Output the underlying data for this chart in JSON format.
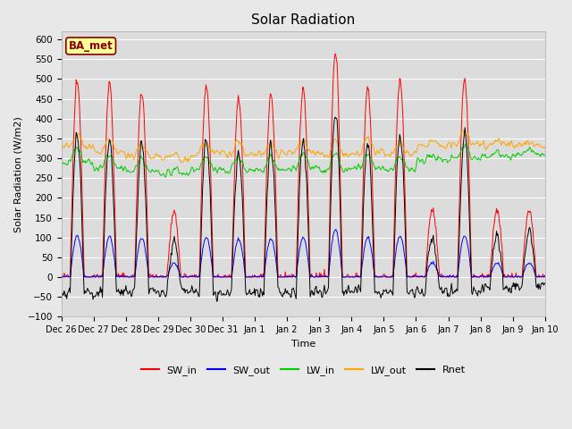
{
  "title": "Solar Radiation",
  "xlabel": "Time",
  "ylabel": "Solar Radiation (W/m2)",
  "ylim": [
    -100,
    620
  ],
  "yticks": [
    -100,
    -50,
    0,
    50,
    100,
    150,
    200,
    250,
    300,
    350,
    400,
    450,
    500,
    550,
    600
  ],
  "colors": {
    "SW_in": "#ff0000",
    "SW_out": "#0000ff",
    "LW_in": "#00cc00",
    "LW_out": "#ffa500",
    "Rnet": "#000000"
  },
  "annotation_text": "BA_met",
  "annotation_color": "#8B0000",
  "annotation_bg": "#ffff99",
  "plot_bg_color": "#dcdcdc",
  "fig_bg_color": "#e8e8e8",
  "n_days": 15,
  "n_per_day": 48,
  "tick_labels": [
    "Dec 26",
    "Dec 27",
    "Dec 28",
    "Dec 29",
    "Dec 30",
    "Dec 31",
    "Jan 1",
    "Jan 2",
    "Jan 3",
    "Jan 4",
    "Jan 5",
    "Jan 6",
    "Jan 7",
    "Jan 8",
    "Jan 9",
    "Jan 10"
  ],
  "peak_heights_sw_in": [
    495,
    490,
    470,
    160,
    480,
    450,
    460,
    475,
    565,
    480,
    500,
    170,
    500,
    170,
    170
  ],
  "lw_in_base": [
    290,
    275,
    265,
    260,
    270,
    270,
    270,
    275,
    270,
    275,
    270,
    295,
    300,
    305,
    310
  ],
  "lw_out_base": [
    330,
    315,
    305,
    300,
    310,
    310,
    310,
    315,
    310,
    315,
    310,
    330,
    335,
    335,
    330
  ],
  "night_rnet": -50,
  "linewidth": 0.7
}
